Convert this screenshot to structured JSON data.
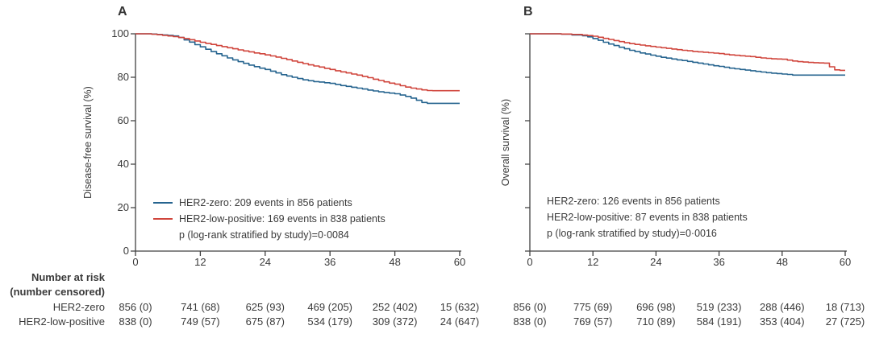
{
  "colors": {
    "her2_zero": "#26648f",
    "her2_low": "#d0453c",
    "text": "#3a3a3a",
    "axis": "#404040"
  },
  "chart_data": [
    {
      "type": "line",
      "panel": "A",
      "ylabel": "Disease-free survival (%)",
      "xlabel": "",
      "xlim": [
        0,
        60
      ],
      "ylim": [
        0,
        100
      ],
      "xticks": [
        0,
        12,
        24,
        36,
        48,
        60
      ],
      "yticks": [
        0,
        20,
        40,
        60,
        80,
        100
      ],
      "show_ytick_labels": true,
      "grid": false,
      "legend": [
        "HER2-zero: 209 events in 856 patients",
        "HER2-low-positive: 169 events in 838 patients",
        "p (log-rank stratified by study)=0·0084"
      ],
      "series": [
        {
          "name": "HER2-zero",
          "color_key": "her2_zero",
          "points": [
            [
              0,
              100
            ],
            [
              3,
              99.9
            ],
            [
              4,
              99.7
            ],
            [
              5,
              99.5
            ],
            [
              6,
              99.3
            ],
            [
              7,
              99.0
            ],
            [
              8,
              98.3
            ],
            [
              9,
              97.2
            ],
            [
              10,
              96.2
            ],
            [
              11,
              95.0
            ],
            [
              12,
              94.0
            ],
            [
              13,
              92.9
            ],
            [
              14,
              91.8
            ],
            [
              15,
              90.8
            ],
            [
              16,
              89.9
            ],
            [
              17,
              88.9
            ],
            [
              18,
              88.0
            ],
            [
              19,
              87.2
            ],
            [
              20,
              86.4
            ],
            [
              21,
              85.6
            ],
            [
              22,
              84.9
            ],
            [
              23,
              84.2
            ],
            [
              24,
              83.6
            ],
            [
              25,
              82.8
            ],
            [
              26,
              82.0
            ],
            [
              27,
              81.2
            ],
            [
              28,
              80.6
            ],
            [
              29,
              80.0
            ],
            [
              30,
              79.4
            ],
            [
              31,
              78.8
            ],
            [
              32,
              78.4
            ],
            [
              33,
              78.0
            ],
            [
              34,
              77.8
            ],
            [
              35,
              77.5
            ],
            [
              36,
              77.2
            ],
            [
              37,
              76.7
            ],
            [
              38,
              76.2
            ],
            [
              39,
              75.8
            ],
            [
              40,
              75.4
            ],
            [
              41,
              75.0
            ],
            [
              42,
              74.6
            ],
            [
              43,
              74.1
            ],
            [
              44,
              73.7
            ],
            [
              45,
              73.3
            ],
            [
              46,
              73.0
            ],
            [
              47,
              72.7
            ],
            [
              48,
              72.4
            ],
            [
              49,
              71.8
            ],
            [
              50,
              71.2
            ],
            [
              51,
              70.4
            ],
            [
              52,
              69.4
            ],
            [
              53,
              68.4
            ],
            [
              54,
              68.0
            ],
            [
              60,
              68.0
            ]
          ]
        },
        {
          "name": "HER2-low-positive",
          "color_key": "her2_low",
          "points": [
            [
              0,
              100
            ],
            [
              3,
              99.8
            ],
            [
              4,
              99.6
            ],
            [
              5,
              99.3
            ],
            [
              6,
              99.0
            ],
            [
              7,
              98.7
            ],
            [
              8,
              98.3
            ],
            [
              9,
              97.8
            ],
            [
              10,
              97.3
            ],
            [
              11,
              96.7
            ],
            [
              12,
              96.1
            ],
            [
              13,
              95.6
            ],
            [
              14,
              95.1
            ],
            [
              15,
              94.6
            ],
            [
              16,
              94.1
            ],
            [
              17,
              93.6
            ],
            [
              18,
              93.1
            ],
            [
              19,
              92.6
            ],
            [
              20,
              92.1
            ],
            [
              21,
              91.7
            ],
            [
              22,
              91.2
            ],
            [
              23,
              90.8
            ],
            [
              24,
              90.3
            ],
            [
              25,
              89.8
            ],
            [
              26,
              89.3
            ],
            [
              27,
              88.7
            ],
            [
              28,
              88.1
            ],
            [
              29,
              87.5
            ],
            [
              30,
              86.9
            ],
            [
              31,
              86.3
            ],
            [
              32,
              85.7
            ],
            [
              33,
              85.2
            ],
            [
              34,
              84.7
            ],
            [
              35,
              84.1
            ],
            [
              36,
              83.6
            ],
            [
              37,
              83.0
            ],
            [
              38,
              82.5
            ],
            [
              39,
              82.0
            ],
            [
              40,
              81.5
            ],
            [
              41,
              81.0
            ],
            [
              42,
              80.4
            ],
            [
              43,
              79.8
            ],
            [
              44,
              79.1
            ],
            [
              45,
              78.5
            ],
            [
              46,
              77.9
            ],
            [
              47,
              77.3
            ],
            [
              48,
              76.8
            ],
            [
              49,
              76.1
            ],
            [
              50,
              75.5
            ],
            [
              51,
              75.0
            ],
            [
              52,
              74.6
            ],
            [
              53,
              74.2
            ],
            [
              54,
              73.9
            ],
            [
              55,
              73.8
            ],
            [
              60,
              73.8
            ]
          ]
        }
      ]
    },
    {
      "type": "line",
      "panel": "B",
      "ylabel": "Overall survival (%)",
      "xlabel": "",
      "xlim": [
        0,
        60
      ],
      "ylim": [
        0,
        100
      ],
      "xticks": [
        0,
        12,
        24,
        36,
        48,
        60
      ],
      "yticks": [
        0,
        20,
        40,
        60,
        80,
        100
      ],
      "show_ytick_labels": false,
      "grid": false,
      "legend": [
        "HER2-zero: 126 events in 856 patients",
        "HER2-low-positive: 87 events in 838 patients",
        "p (log-rank stratified by study)=0·0016"
      ],
      "series": [
        {
          "name": "HER2-zero",
          "color_key": "her2_zero",
          "points": [
            [
              0,
              100
            ],
            [
              6,
              99.8
            ],
            [
              8,
              99.5
            ],
            [
              10,
              99.1
            ],
            [
              11,
              98.6
            ],
            [
              12,
              97.8
            ],
            [
              13,
              97.0
            ],
            [
              14,
              96.1
            ],
            [
              15,
              95.3
            ],
            [
              16,
              94.6
            ],
            [
              17,
              93.8
            ],
            [
              18,
              93.1
            ],
            [
              19,
              92.4
            ],
            [
              20,
              91.8
            ],
            [
              21,
              91.2
            ],
            [
              22,
              90.7
            ],
            [
              23,
              90.2
            ],
            [
              24,
              89.7
            ],
            [
              25,
              89.2
            ],
            [
              26,
              88.8
            ],
            [
              27,
              88.4
            ],
            [
              28,
              88.0
            ],
            [
              29,
              87.7
            ],
            [
              30,
              87.3
            ],
            [
              31,
              86.9
            ],
            [
              32,
              86.5
            ],
            [
              33,
              86.1
            ],
            [
              34,
              85.7
            ],
            [
              35,
              85.3
            ],
            [
              36,
              85.0
            ],
            [
              37,
              84.6
            ],
            [
              38,
              84.2
            ],
            [
              39,
              83.9
            ],
            [
              40,
              83.6
            ],
            [
              41,
              83.3
            ],
            [
              42,
              83.0
            ],
            [
              43,
              82.7
            ],
            [
              44,
              82.4
            ],
            [
              45,
              82.1
            ],
            [
              46,
              81.9
            ],
            [
              47,
              81.7
            ],
            [
              48,
              81.5
            ],
            [
              49,
              81.3
            ],
            [
              50,
              81.0
            ],
            [
              60,
              81.0
            ]
          ]
        },
        {
          "name": "HER2-low-positive",
          "color_key": "her2_low",
          "points": [
            [
              0,
              100
            ],
            [
              6,
              99.9
            ],
            [
              8,
              99.7
            ],
            [
              10,
              99.4
            ],
            [
              11,
              99.2
            ],
            [
              12,
              98.9
            ],
            [
              13,
              98.4
            ],
            [
              14,
              97.9
            ],
            [
              15,
              97.4
            ],
            [
              16,
              96.9
            ],
            [
              17,
              96.4
            ],
            [
              18,
              95.9
            ],
            [
              19,
              95.5
            ],
            [
              20,
              95.1
            ],
            [
              21,
              94.8
            ],
            [
              22,
              94.5
            ],
            [
              23,
              94.2
            ],
            [
              24,
              93.9
            ],
            [
              25,
              93.6
            ],
            [
              26,
              93.3
            ],
            [
              27,
              93.0
            ],
            [
              28,
              92.7
            ],
            [
              29,
              92.4
            ],
            [
              30,
              92.2
            ],
            [
              31,
              91.9
            ],
            [
              32,
              91.7
            ],
            [
              33,
              91.5
            ],
            [
              34,
              91.3
            ],
            [
              35,
              91.1
            ],
            [
              36,
              90.9
            ],
            [
              37,
              90.6
            ],
            [
              38,
              90.3
            ],
            [
              39,
              90.1
            ],
            [
              40,
              89.9
            ],
            [
              41,
              89.7
            ],
            [
              42,
              89.5
            ],
            [
              43,
              89.2
            ],
            [
              44,
              88.9
            ],
            [
              45,
              88.7
            ],
            [
              46,
              88.5
            ],
            [
              47,
              88.4
            ],
            [
              48,
              88.3
            ],
            [
              49,
              87.9
            ],
            [
              50,
              87.5
            ],
            [
              51,
              87.2
            ],
            [
              52,
              87.0
            ],
            [
              53,
              86.8
            ],
            [
              54,
              86.7
            ],
            [
              55,
              86.6
            ],
            [
              56,
              86.5
            ],
            [
              57,
              84.8
            ],
            [
              58,
              83.4
            ],
            [
              59,
              83.2
            ],
            [
              60,
              83.2
            ]
          ]
        }
      ]
    }
  ],
  "risk_table": {
    "header_line1": "Number at risk",
    "header_line2": "(number censored)",
    "row_labels": [
      "HER2-zero",
      "HER2-low-positive"
    ],
    "panels": [
      {
        "rows": [
          [
            "856 (0)",
            "741 (68)",
            "625 (93)",
            "469 (205)",
            "252 (402)",
            "15 (632)"
          ],
          [
            "838 (0)",
            "749 (57)",
            "675 (87)",
            "534 (179)",
            "309 (372)",
            "24 (647)"
          ]
        ]
      },
      {
        "rows": [
          [
            "856 (0)",
            "775 (69)",
            "696 (98)",
            "519 (233)",
            "288 (446)",
            "18 (713)"
          ],
          [
            "838 (0)",
            "769 (57)",
            "710 (89)",
            "584 (191)",
            "353 (404)",
            "27 (725)"
          ]
        ]
      }
    ]
  }
}
